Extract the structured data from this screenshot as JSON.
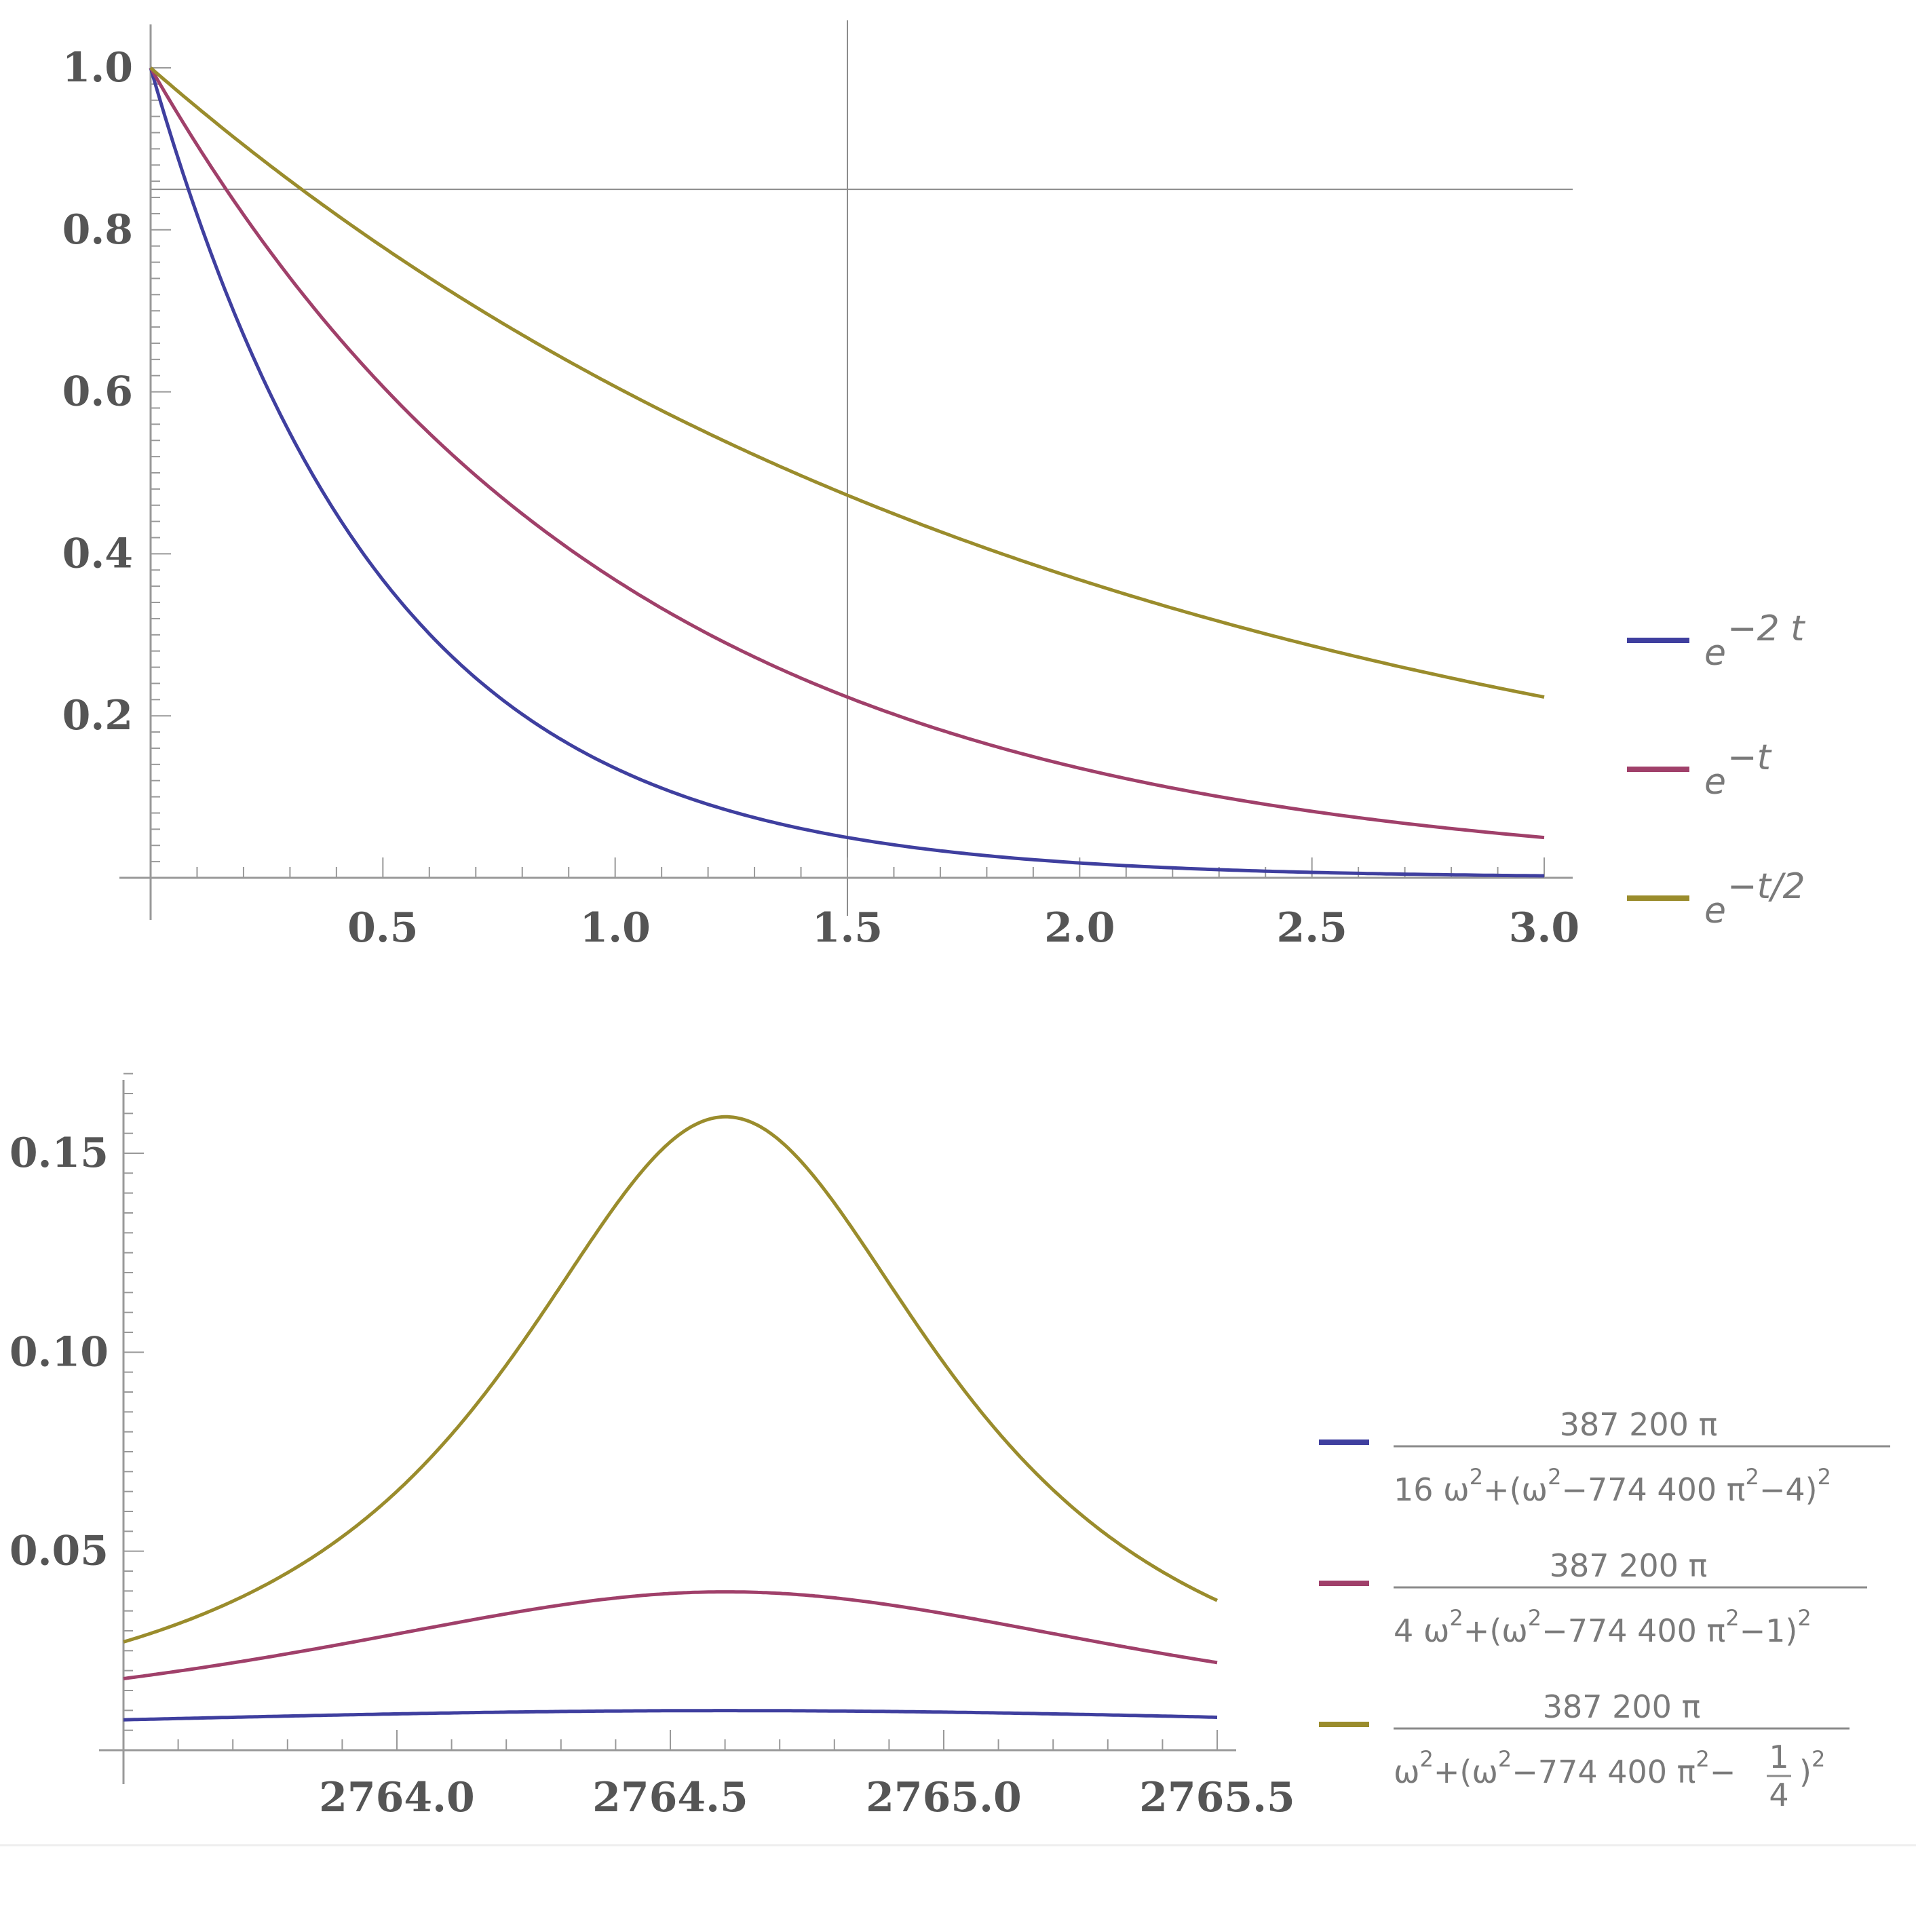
{
  "chart_data": [
    {
      "type": "line",
      "title": "",
      "xlabel": "",
      "ylabel": "",
      "xlim": [
        0,
        3.0
      ],
      "ylim": [
        0,
        1.0
      ],
      "x_ticks": [
        "0.5",
        "1.0",
        "1.5",
        "2.0",
        "2.5",
        "3.0"
      ],
      "y_ticks": [
        "0.2",
        "0.4",
        "0.6",
        "0.8",
        "1.0"
      ],
      "reference_lines": {
        "x": 1.5,
        "y": 0.85
      },
      "legend_position": "right",
      "series": [
        {
          "name": "e^{-2 t}",
          "legend_base": "e",
          "legend_exp": "−2 t",
          "color": "#3f3f9f",
          "rate": 2
        },
        {
          "name": "e^{-t}",
          "legend_base": "e",
          "legend_exp": "−t",
          "color": "#a0406a",
          "rate": 1
        },
        {
          "name": "e^{-t/2}",
          "legend_base": "e",
          "legend_exp": "−t/2",
          "color": "#9a8c2c",
          "rate": 0.5
        }
      ]
    },
    {
      "type": "line",
      "title": "",
      "xlabel": "",
      "ylabel": "",
      "xlim": [
        2763.5,
        2765.5
      ],
      "ylim": [
        0,
        0.17
      ],
      "x_ticks": [
        "2764.0",
        "2764.5",
        "2765.0",
        "2765.5"
      ],
      "y_ticks": [
        "0.05",
        "0.10",
        "0.15"
      ],
      "legend_position": "right",
      "series": [
        {
          "numerator": "387 200 π",
          "den_a": "16 ω",
          "den_b": "+(ω",
          "den_c": "−774 400 π",
          "den_d": "−4)",
          "color": "#3f3f9f",
          "k": 4,
          "p": 4,
          "peak": 0.01
        },
        {
          "numerator": "387 200 π",
          "den_a": "4 ω",
          "den_b": "+(ω",
          "den_c": "−774 400 π",
          "den_d": "−1)",
          "color": "#a0406a",
          "k": 2,
          "p": 1,
          "peak": 0.04
        },
        {
          "numerator": "387 200 π",
          "den_a": "ω",
          "den_b": "+(ω",
          "den_c": "−774 400 π",
          "den_d": "−",
          "frac_num": "1",
          "frac_den": "4",
          "color": "#9a8c2c",
          "k": 1,
          "p": 0.25,
          "peak": 0.16
        }
      ]
    }
  ]
}
